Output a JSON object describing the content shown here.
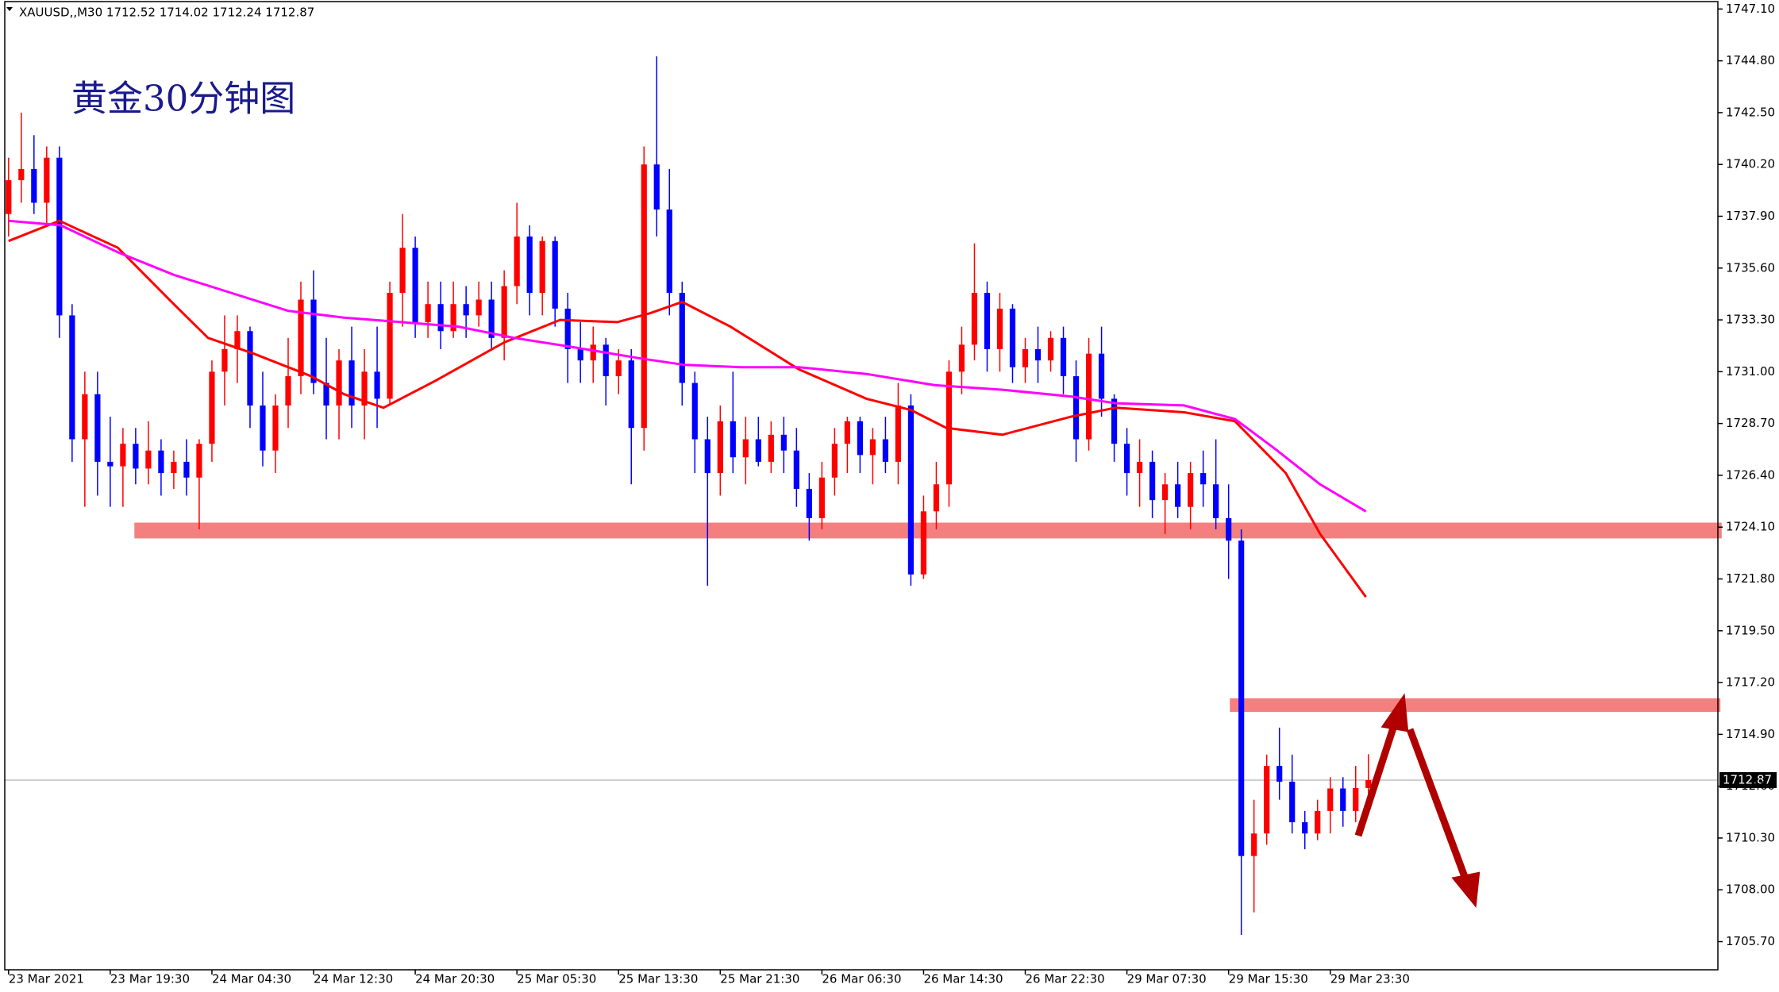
{
  "chart_data": {
    "type": "candlestick",
    "header": "XAUUSD,,M30  1712.52 1714.02 1712.24 1712.87",
    "title": "黄金30分钟图",
    "up_color": "#ff0000",
    "down_color": "#0000ff",
    "open": [
      1738,
      1739.5,
      1740,
      1738.5,
      1740.5,
      1733.5,
      1728,
      1730,
      1727,
      1726.8,
      1727.8,
      1726.7,
      1727.5,
      1726.5,
      1727,
      1726.3,
      1727.8,
      1731,
      1732,
      1732.8,
      1729.5,
      1727.5,
      1729.5,
      1730.8,
      1734.2,
      1730.5,
      1729.5,
      1731.5,
      1729.5,
      1731,
      1729.8,
      1734.5,
      1736.5,
      1733.2,
      1734,
      1732.8,
      1734,
      1733.5,
      1734.2,
      1732.5,
      1734.8,
      1737,
      1734.5,
      1736.8,
      1733.8,
      1732,
      1731.5,
      1732.2,
      1730.8,
      1731.5,
      1728.5,
      1740.2,
      1738.2,
      1734.5,
      1730.5,
      1728,
      1726.5,
      1728.8,
      1727.2,
      1728,
      1727,
      1728.2,
      1727.5,
      1725.8,
      1724.5,
      1726.3,
      1727.8,
      1728.8,
      1727.3,
      1728,
      1727,
      1729.5,
      1722,
      1724.8,
      1726,
      1731,
      1732.2,
      1734.5,
      1732,
      1733.8,
      1731.2,
      1732,
      1731.5,
      1732.5,
      1730.8,
      1728,
      1731.8,
      1729.8,
      1727.8,
      1726.5,
      1727,
      1725.3,
      1726,
      1725,
      1726.5,
      1726,
      1724.5,
      1723.5,
      1709.5,
      1710.5,
      1713.5,
      1712.8,
      1711,
      1710.5,
      1711.5,
      1712.5,
      1711.5,
      1712.52
    ],
    "high": [
      1740.5,
      1742.5,
      1741.5,
      1741,
      1741,
      1734,
      1731,
      1731,
      1729,
      1728.5,
      1728.5,
      1728.8,
      1728,
      1727.5,
      1728,
      1728,
      1731.5,
      1733.5,
      1733.5,
      1733,
      1731,
      1730,
      1732.5,
      1735,
      1735.5,
      1732.5,
      1732,
      1733,
      1732,
      1733,
      1735,
      1738,
      1737,
      1735,
      1735,
      1735,
      1734.8,
      1735,
      1735,
      1735.5,
      1738.5,
      1737.5,
      1737,
      1737,
      1734.5,
      1733.2,
      1733,
      1732.5,
      1732,
      1732,
      1741,
      1745,
      1740,
      1735,
      1731,
      1729,
      1729.5,
      1731,
      1729,
      1729,
      1728.8,
      1729,
      1728.5,
      1726.5,
      1727,
      1728.5,
      1729,
      1729,
      1728.5,
      1729,
      1730.5,
      1730,
      1725.5,
      1727,
      1731.5,
      1733,
      1736.7,
      1735,
      1734.5,
      1734,
      1732.5,
      1733,
      1732.8,
      1733,
      1731.5,
      1732.5,
      1733,
      1730,
      1728.5,
      1728,
      1727.5,
      1726.5,
      1727,
      1727,
      1727.5,
      1728,
      1726,
      1724,
      1712,
      1714,
      1715.2,
      1714,
      1711.5,
      1712,
      1713,
      1713,
      1713.5,
      1714.02
    ],
    "low": [
      1737,
      1738.5,
      1738,
      1737.5,
      1732.5,
      1727,
      1725,
      1725.5,
      1725,
      1725,
      1726,
      1726,
      1725.5,
      1725.8,
      1725.5,
      1724,
      1727,
      1729.5,
      1730.5,
      1728.5,
      1726.8,
      1726.5,
      1728.5,
      1730,
      1730,
      1728,
      1728,
      1728.5,
      1728,
      1728.5,
      1729.5,
      1733,
      1732.5,
      1732.5,
      1732,
      1732.5,
      1732.5,
      1733,
      1732,
      1731.5,
      1734,
      1733.5,
      1733.5,
      1733,
      1730.5,
      1730.5,
      1730.5,
      1729.5,
      1730,
      1726,
      1727.5,
      1737,
      1733.5,
      1729.5,
      1726.5,
      1721.5,
      1725.5,
      1726.5,
      1726,
      1726.8,
      1726.5,
      1726.5,
      1725,
      1723.5,
      1724,
      1725.5,
      1726.5,
      1726.5,
      1726,
      1726.5,
      1726,
      1721.5,
      1721.8,
      1724,
      1725,
      1730,
      1731.5,
      1731,
      1731,
      1730.5,
      1730.5,
      1730.5,
      1731,
      1730,
      1727,
      1727.5,
      1729,
      1727,
      1725.5,
      1725,
      1724.5,
      1723.8,
      1724.5,
      1724,
      1725,
      1724,
      1721.8,
      1706,
      1707,
      1710,
      1712,
      1710.5,
      1709.8,
      1710.2,
      1710.5,
      1710.8,
      1711,
      1712.24
    ],
    "close": [
      1739.5,
      1740,
      1738.5,
      1740.5,
      1733.5,
      1728,
      1730,
      1727,
      1726.8,
      1727.8,
      1726.7,
      1727.5,
      1726.5,
      1727,
      1726.3,
      1727.8,
      1731,
      1732,
      1732.8,
      1729.5,
      1727.5,
      1729.5,
      1730.8,
      1734.2,
      1730.5,
      1729.5,
      1731.5,
      1729.5,
      1731,
      1729.8,
      1734.5,
      1736.5,
      1733.2,
      1734,
      1732.8,
      1734,
      1733.5,
      1734.2,
      1732.5,
      1734.8,
      1737,
      1734.5,
      1736.8,
      1733.8,
      1732,
      1731.5,
      1732.2,
      1730.8,
      1731.5,
      1728.5,
      1740.2,
      1738.2,
      1734.5,
      1730.5,
      1728,
      1726.5,
      1728.8,
      1727.2,
      1728,
      1727,
      1728.2,
      1727.5,
      1725.8,
      1724.5,
      1726.3,
      1727.8,
      1728.8,
      1727.3,
      1728,
      1727,
      1729.5,
      1722,
      1724.8,
      1726,
      1731,
      1732.2,
      1734.5,
      1732,
      1733.8,
      1731.2,
      1732,
      1731.5,
      1732.5,
      1730.8,
      1728,
      1731.8,
      1729.8,
      1727.8,
      1726.5,
      1727,
      1725.3,
      1726,
      1725,
      1726.5,
      1726,
      1724.5,
      1723.5,
      1709.5,
      1710.5,
      1713.5,
      1712.8,
      1711,
      1710.5,
      1711.5,
      1712.5,
      1711.5,
      1712.52,
      1712.87
    ],
    "lines": [
      {
        "color": "#ff0000",
        "x": [
          0,
          4,
          8.6,
          13,
          15.7,
          19.3,
          23.8,
          26.4,
          29.5,
          33.6,
          39,
          43.4,
          47.9,
          50.5,
          53,
          56.8,
          62.2,
          67.5,
          71,
          73.8,
          78.2,
          83.6,
          87.1,
          92.5,
          96.5,
          100.5,
          103.2,
          106.8
        ],
        "values": [
          1736.8,
          1737.7,
          1736.5,
          1734,
          1732.5,
          1731.8,
          1730.8,
          1730,
          1729.4,
          1730.6,
          1732.3,
          1733.3,
          1733.2,
          1733.6,
          1734.1,
          1733,
          1731.1,
          1729.8,
          1729.3,
          1728.5,
          1728.2,
          1729,
          1729.4,
          1729.2,
          1728.8,
          1726.5,
          1723.8,
          1721
        ]
      },
      {
        "color": "#ff00ff",
        "x": [
          0,
          4.1,
          8.6,
          13,
          17.5,
          22,
          26.4,
          30.9,
          35.4,
          39.8,
          44.3,
          49.6,
          53.2,
          57.7,
          62.2,
          67.5,
          72.9,
          78.2,
          83.6,
          87.1,
          92.5,
          96.5,
          99.6,
          103.2,
          106.8
        ],
        "values": [
          1737.7,
          1737.5,
          1736.3,
          1735.3,
          1734.5,
          1733.7,
          1733.4,
          1733.2,
          1733,
          1732.5,
          1732.1,
          1731.6,
          1731.3,
          1731.2,
          1731.2,
          1730.9,
          1730.4,
          1730.2,
          1729.9,
          1729.6,
          1729.5,
          1728.9,
          1727.6,
          1726,
          1724.8
        ]
      }
    ],
    "zones": [
      {
        "color": "#f47f7f",
        "from": 1723.6,
        "to": 1724.3,
        "x": [
          9.9,
          134.8
        ]
      },
      {
        "color": "#f47f7f",
        "from": 1715.9,
        "to": 1716.5,
        "x": [
          96.1,
          134.7
        ]
      }
    ],
    "current_price": 1712.87,
    "xlim": [
      -0.3,
      134.5
    ],
    "xticks": [
      {
        "value": 0,
        "label": "23 Mar 2021"
      },
      {
        "value": 8,
        "label": "23 Mar 19:30"
      },
      {
        "value": 16,
        "label": "24 Mar 04:30"
      },
      {
        "value": 24,
        "label": "24 Mar 12:30"
      },
      {
        "value": 32,
        "label": "24 Mar 20:30"
      },
      {
        "value": 40,
        "label": "25 Mar 05:30"
      },
      {
        "value": 48,
        "label": "25 Mar 13:30"
      },
      {
        "value": 56,
        "label": "25 Mar 21:30"
      },
      {
        "value": 64,
        "label": "26 Mar 06:30"
      },
      {
        "value": 72,
        "label": "26 Mar 14:30"
      },
      {
        "value": 80,
        "label": "26 Mar 22:30"
      },
      {
        "value": 88,
        "label": "29 Mar 07:30"
      },
      {
        "value": 96,
        "label": "29 Mar 15:30"
      },
      {
        "value": 104,
        "label": "29 Mar 23:30"
      }
    ],
    "ylim": [
      1704.45,
      1747.5
    ],
    "yticks": [
      {
        "value": 1747.1,
        "label": "1747.10"
      },
      {
        "value": 1744.8,
        "label": "1744.80"
      },
      {
        "value": 1742.5,
        "label": "1742.50"
      },
      {
        "value": 1740.2,
        "label": "1740.20"
      },
      {
        "value": 1737.9,
        "label": "1737.90"
      },
      {
        "value": 1735.6,
        "label": "1735.60"
      },
      {
        "value": 1733.3,
        "label": "1733.30"
      },
      {
        "value": 1731,
        "label": "1731.00"
      },
      {
        "value": 1728.7,
        "label": "1728.70"
      },
      {
        "value": 1726.4,
        "label": "1726.40"
      },
      {
        "value": 1724.1,
        "label": "1724.10"
      },
      {
        "value": 1721.8,
        "label": "1721.80"
      },
      {
        "value": 1719.5,
        "label": "1719.50"
      },
      {
        "value": 1717.2,
        "label": "1717.20"
      },
      {
        "value": 1714.9,
        "label": "1714.90"
      },
      {
        "value": 1712.6,
        "label": "1712.60"
      },
      {
        "value": 1710.3,
        "label": "1710.30"
      },
      {
        "value": 1708,
        "label": "1708.00"
      },
      {
        "value": 1705.7,
        "label": "1705.70"
      }
    ]
  }
}
